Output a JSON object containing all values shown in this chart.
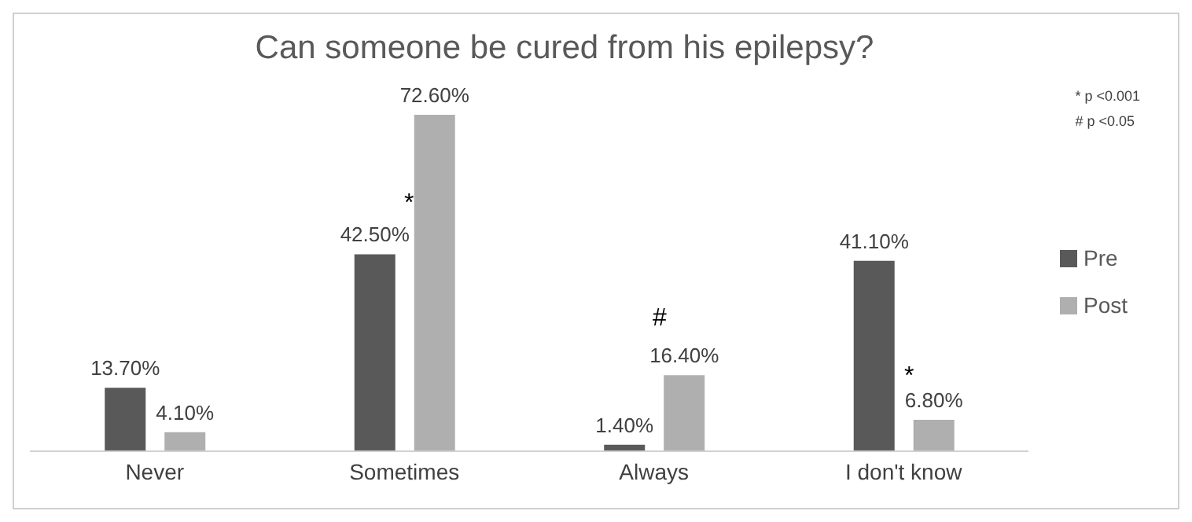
{
  "chart_data": {
    "type": "bar",
    "title": "Can someone be cured from his epilepsy?",
    "categories": [
      "Never",
      "Sometimes",
      "Always",
      "I don't know"
    ],
    "series": [
      {
        "name": "Pre",
        "color": "#595959",
        "values": [
          13.7,
          42.5,
          1.4,
          41.1
        ],
        "value_labels": [
          "13.70%",
          "42.50%",
          "1.40%",
          "41.10%"
        ]
      },
      {
        "name": "Post",
        "color": "#afafaf",
        "values": [
          4.1,
          72.6,
          16.4,
          6.8
        ],
        "value_labels": [
          "4.10%",
          "72.60%",
          "16.40%",
          "6.80%"
        ]
      }
    ],
    "annotations": [
      "*",
      "#",
      "*",
      "* p <0.001",
      "# p <0.05"
    ],
    "legend": "right",
    "grid": false
  }
}
